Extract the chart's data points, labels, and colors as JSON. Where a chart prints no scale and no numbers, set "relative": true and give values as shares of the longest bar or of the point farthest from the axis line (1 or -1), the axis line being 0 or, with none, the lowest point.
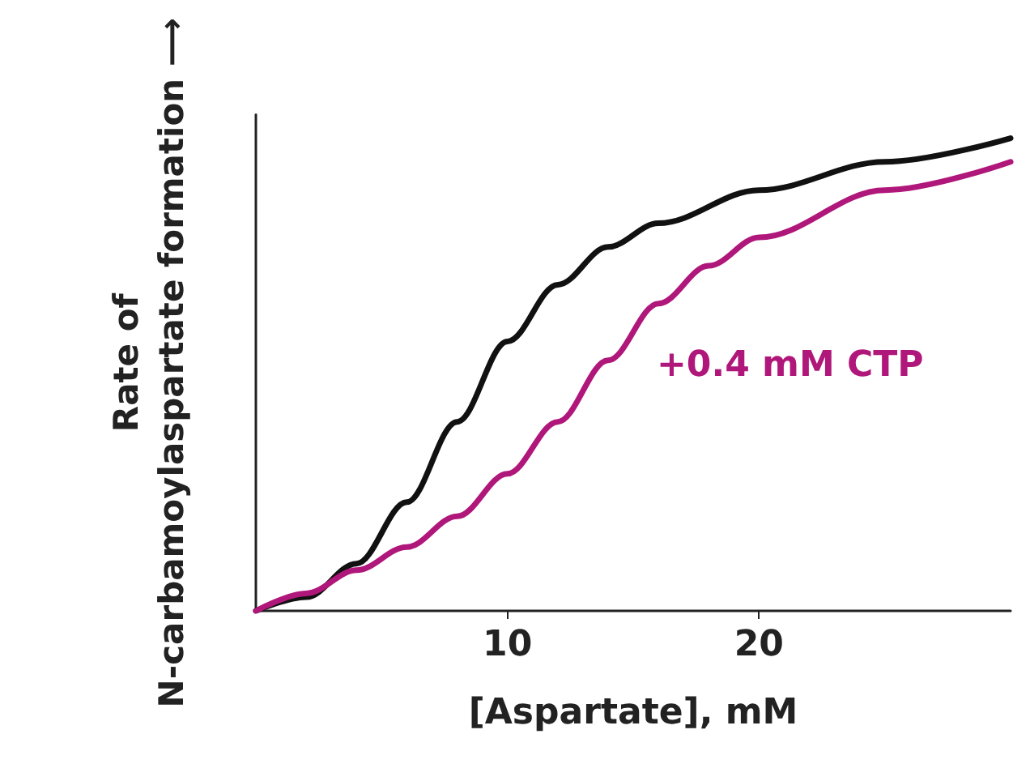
{
  "chart_data": {
    "type": "line",
    "relative": true,
    "xlabel": "[Aspartate], mM",
    "ylabel": "Rate of\nN-carbamoylaspartate formation ⟶",
    "xlim": [
      0,
      30
    ],
    "xticks": [
      10,
      20
    ],
    "tick_labels": "x",
    "grid": false,
    "legend": false,
    "marker": "none",
    "line_style": "solid",
    "series": [
      {
        "color": "#111111",
        "x": [
          0,
          2,
          4,
          6,
          8,
          10,
          12,
          14,
          16,
          20,
          25,
          30
        ],
        "values": [
          0,
          0.029,
          0.1,
          0.23,
          0.4,
          0.57,
          0.69,
          0.77,
          0.82,
          0.89,
          0.95,
          1.0
        ]
      },
      {
        "name": "+0.4 mM CTP",
        "color": "#b0177a",
        "x": [
          0,
          2,
          4,
          6,
          8,
          10,
          12,
          14,
          16,
          18,
          20,
          25,
          30
        ],
        "values": [
          0,
          0.037,
          0.086,
          0.135,
          0.2,
          0.29,
          0.4,
          0.53,
          0.65,
          0.73,
          0.79,
          0.89,
          0.95
        ]
      }
    ]
  }
}
